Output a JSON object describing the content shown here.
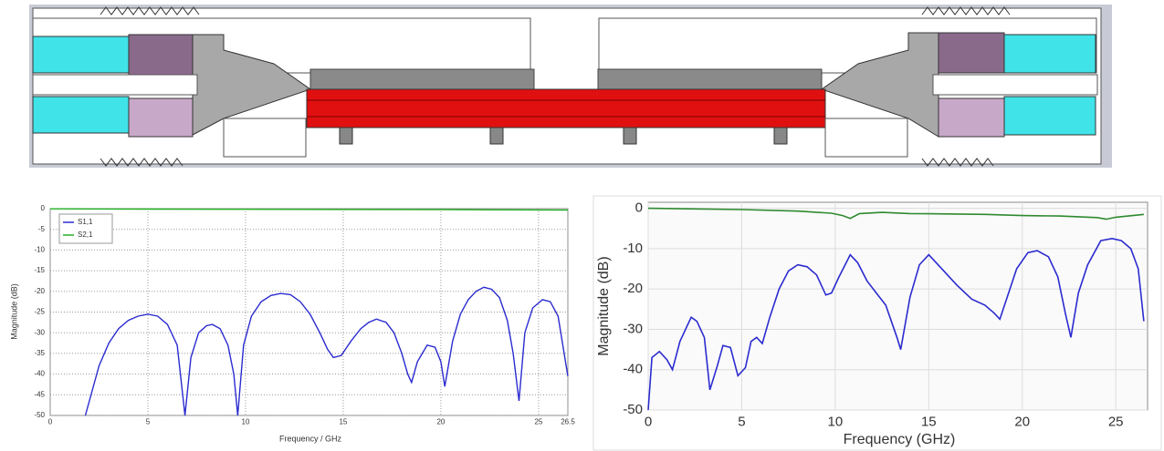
{
  "chart_data": [
    {
      "type": "line",
      "xlabel": "Frequency / GHz",
      "ylabel": "Magnitude (dB)",
      "xlim": [
        0,
        26.5
      ],
      "xticks": [
        0,
        5,
        10,
        15,
        20,
        25,
        26.5
      ],
      "ylim": [
        -50,
        0
      ],
      "yticks": [
        0,
        -5,
        -10,
        -15,
        -20,
        -25,
        -30,
        -35,
        -40,
        -45,
        -50
      ],
      "grid": true,
      "grid_style": "dotted",
      "legend": "upper left",
      "series": [
        {
          "name": "S1,1",
          "color": "#2b2bd0",
          "x": [
            1.8,
            2.5,
            3,
            3.5,
            4,
            4.5,
            5,
            5.5,
            6,
            6.5,
            6.9,
            7.2,
            7.6,
            8,
            8.3,
            8.7,
            9.1,
            9.4,
            9.6,
            9.9,
            10.3,
            10.8,
            11.3,
            11.8,
            12.3,
            12.8,
            13.3,
            13.8,
            14.2,
            14.5,
            14.9,
            15.4,
            15.9,
            16.3,
            16.7,
            17.2,
            17.6,
            18,
            18.3,
            18.5,
            18.8,
            19.3,
            19.7,
            20,
            20.2,
            20.6,
            21,
            21.4,
            21.8,
            22.2,
            22.6,
            23,
            23.4,
            23.7,
            24,
            24.3,
            24.7,
            25.2,
            25.6,
            26,
            26.5
          ],
          "values": [
            -50,
            -38,
            -32.5,
            -29,
            -27,
            -26,
            -25.5,
            -26,
            -28,
            -33,
            -50,
            -36,
            -30,
            -28.3,
            -28,
            -29,
            -33,
            -40,
            -50,
            -33,
            -26,
            -22.5,
            -21,
            -20.5,
            -20.8,
            -22.5,
            -25.5,
            -30,
            -34,
            -36,
            -35.5,
            -32,
            -29,
            -27.5,
            -26.7,
            -27.5,
            -30,
            -35,
            -40,
            -42,
            -37,
            -33,
            -33.5,
            -37,
            -43,
            -32,
            -25.5,
            -22,
            -20,
            -19,
            -19.5,
            -21.5,
            -27,
            -35,
            -46.5,
            -30,
            -24,
            -22,
            -22.5,
            -26,
            -40.5
          ]
        },
        {
          "name": "S2,1",
          "color": "#22b022",
          "x": [
            0,
            5,
            10,
            15,
            20,
            26.5
          ],
          "values": [
            -0.05,
            -0.1,
            -0.15,
            -0.2,
            -0.25,
            -0.35
          ]
        }
      ]
    },
    {
      "type": "line",
      "xlabel": "Frequency (GHz)",
      "ylabel": "Magnitude (dB)",
      "xlim": [
        0,
        26.7
      ],
      "xticks": [
        0,
        5,
        10,
        15,
        20,
        25
      ],
      "ylim": [
        -50,
        1.5
      ],
      "yticks": [
        0,
        -10,
        -20,
        -30,
        -40,
        -50
      ],
      "grid": true,
      "grid_style": "solid",
      "series": [
        {
          "color": "#2b2bd0",
          "x": [
            0,
            0.2,
            0.6,
            1,
            1.3,
            1.7,
            2.3,
            2.6,
            3,
            3.3,
            3.7,
            4,
            4.4,
            4.8,
            5.2,
            5.5,
            5.8,
            6.1,
            6.5,
            7,
            7.5,
            8,
            8.5,
            9,
            9.5,
            9.8,
            10.2,
            10.8,
            11.2,
            11.7,
            12.2,
            12.7,
            13.3,
            13.5,
            14,
            14.5,
            15,
            15.5,
            16.5,
            17.3,
            18,
            18.5,
            18.8,
            19.2,
            19.7,
            20.3,
            20.8,
            21.4,
            21.9,
            22.3,
            22.6,
            23,
            23.5,
            24.2,
            24.8,
            25.3,
            25.8,
            26.2,
            26.5
          ],
          "values": [
            -50,
            -37,
            -35.5,
            -37.5,
            -40,
            -33,
            -27,
            -28,
            -32,
            -45,
            -39,
            -34,
            -34.5,
            -41.5,
            -39.5,
            -33,
            -32,
            -33.5,
            -27,
            -20,
            -15.5,
            -14,
            -14.5,
            -16.5,
            -21.5,
            -21,
            -17,
            -11.5,
            -13.5,
            -18,
            -21,
            -24,
            -32,
            -35,
            -22,
            -14,
            -11.5,
            -14,
            -19,
            -22.5,
            -24,
            -26,
            -27.5,
            -22,
            -15,
            -11,
            -10.5,
            -12,
            -17,
            -26,
            -32,
            -21,
            -14,
            -8,
            -7.5,
            -8,
            -10,
            -15,
            -28
          ]
        },
        {
          "color": "#2f8a2f",
          "x": [
            0,
            5,
            8,
            9.8,
            10.4,
            10.8,
            11.3,
            12.5,
            14,
            16,
            18,
            20,
            22,
            24,
            24.5,
            25,
            26.5
          ],
          "values": [
            0,
            -0.3,
            -0.7,
            -1.2,
            -1.8,
            -2.5,
            -1.3,
            -1,
            -1.3,
            -1.4,
            -1.5,
            -1.8,
            -1.9,
            -2.3,
            -2.7,
            -2.2,
            -1.5
          ]
        }
      ]
    }
  ]
}
